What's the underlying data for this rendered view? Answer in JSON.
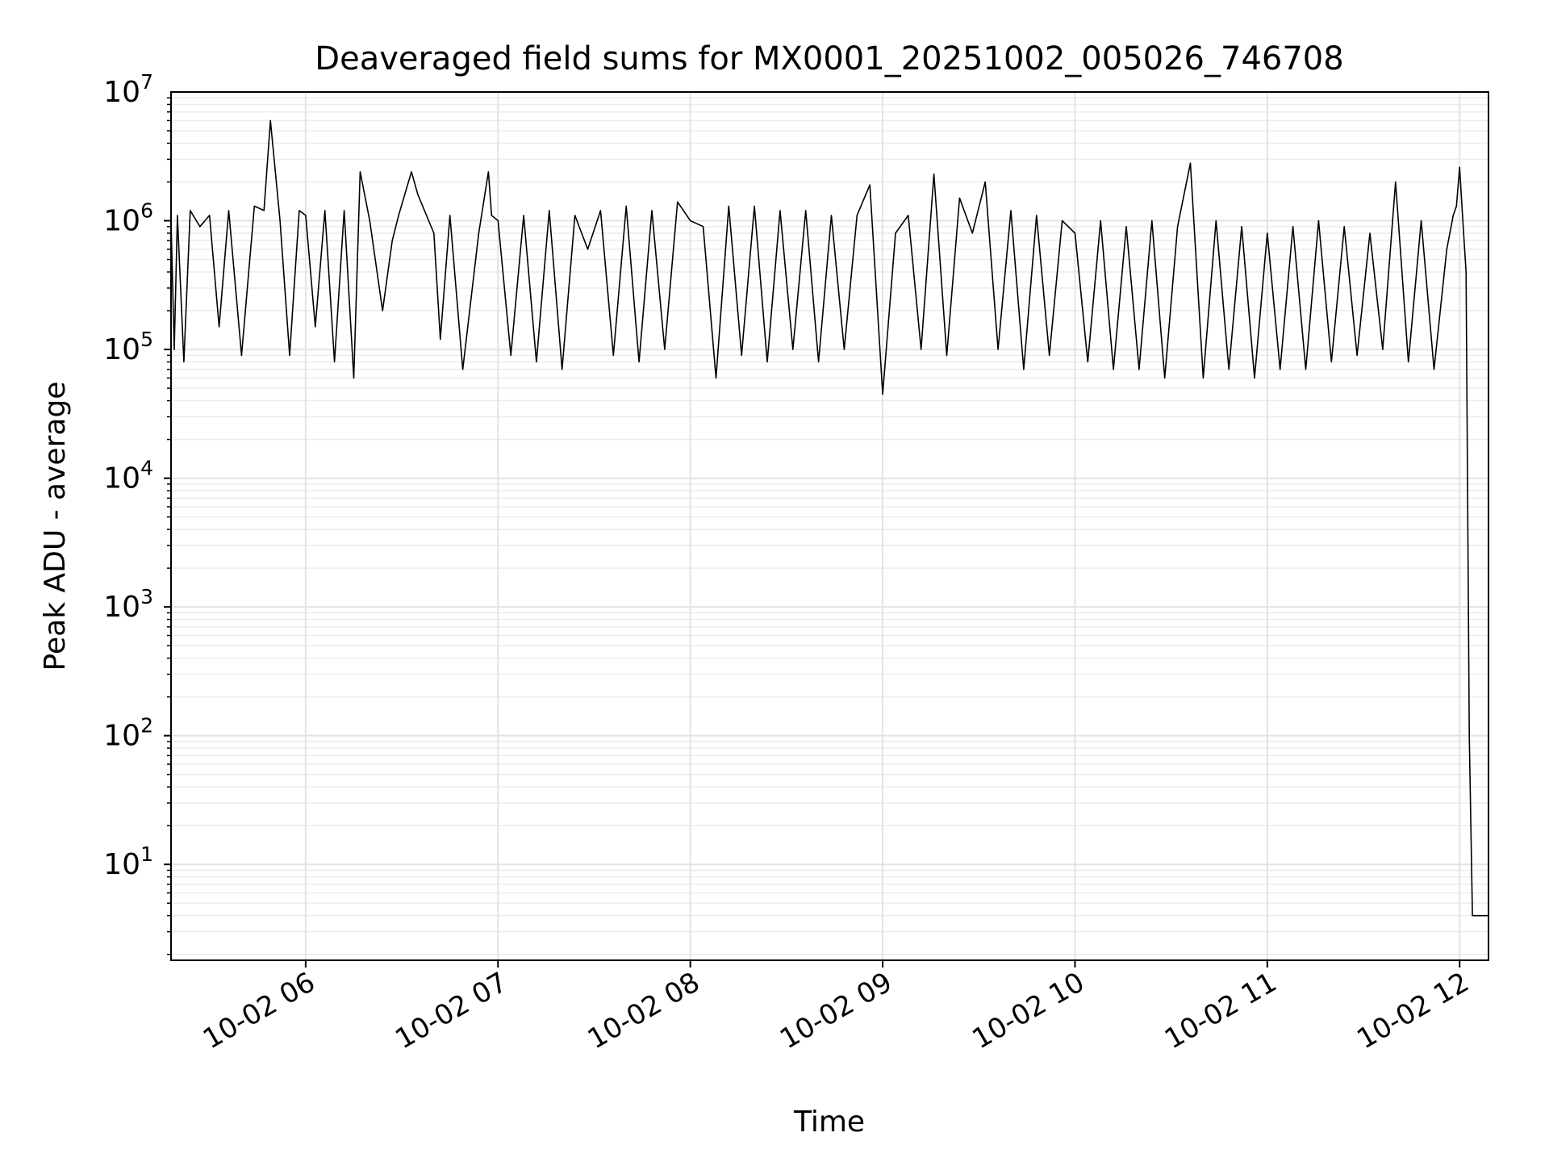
{
  "chart_data": {
    "type": "line",
    "title": "Deaveraged field sums for MX0001_20251002_005026_746708",
    "xlabel": "Time",
    "ylabel": "Peak ADU - average",
    "yscale": "log",
    "ylim": [
      1.8,
      10000000
    ],
    "xlim": [
      "2025-10-02 05:18",
      "2025-10-02 12:09"
    ],
    "grid": true,
    "x_ticks": [
      {
        "time": "2025-10-02 06:00",
        "label": "10-02 06"
      },
      {
        "time": "2025-10-02 07:00",
        "label": "10-02 07"
      },
      {
        "time": "2025-10-02 08:00",
        "label": "10-02 08"
      },
      {
        "time": "2025-10-02 09:00",
        "label": "10-02 09"
      },
      {
        "time": "2025-10-02 10:00",
        "label": "10-02 10"
      },
      {
        "time": "2025-10-02 11:00",
        "label": "10-02 11"
      },
      {
        "time": "2025-10-02 12:00",
        "label": "10-02 12"
      }
    ],
    "y_ticks": [
      {
        "value": 10,
        "base": "10",
        "exp": "1"
      },
      {
        "value": 100,
        "base": "10",
        "exp": "2"
      },
      {
        "value": 1000,
        "base": "10",
        "exp": "3"
      },
      {
        "value": 10000,
        "base": "10",
        "exp": "4"
      },
      {
        "value": 100000,
        "base": "10",
        "exp": "5"
      },
      {
        "value": 1000000,
        "base": "10",
        "exp": "6"
      },
      {
        "value": 10000000,
        "base": "10",
        "exp": "7"
      }
    ],
    "series": [
      {
        "color": "#000000",
        "x": [
          "2025-10-02 05:18",
          "2025-10-02 05:19",
          "2025-10-02 05:20",
          "2025-10-02 05:22",
          "2025-10-02 05:24",
          "2025-10-02 05:27",
          "2025-10-02 05:30",
          "2025-10-02 05:33",
          "2025-10-02 05:36",
          "2025-10-02 05:40",
          "2025-10-02 05:44",
          "2025-10-02 05:47",
          "2025-10-02 05:49",
          "2025-10-02 05:52",
          "2025-10-02 05:55",
          "2025-10-02 05:58",
          "2025-10-02 06:00",
          "2025-10-02 06:03",
          "2025-10-02 06:06",
          "2025-10-02 06:09",
          "2025-10-02 06:12",
          "2025-10-02 06:15",
          "2025-10-02 06:17",
          "2025-10-02 06:20",
          "2025-10-02 06:24",
          "2025-10-02 06:27",
          "2025-10-02 06:29",
          "2025-10-02 06:33",
          "2025-10-02 06:35",
          "2025-10-02 06:40",
          "2025-10-02 06:42",
          "2025-10-02 06:45",
          "2025-10-02 06:49",
          "2025-10-02 06:54",
          "2025-10-02 06:57",
          "2025-10-02 06:58",
          "2025-10-02 07:00",
          "2025-10-02 07:04",
          "2025-10-02 07:08",
          "2025-10-02 07:12",
          "2025-10-02 07:16",
          "2025-10-02 07:20",
          "2025-10-02 07:24",
          "2025-10-02 07:28",
          "2025-10-02 07:32",
          "2025-10-02 07:36",
          "2025-10-02 07:40",
          "2025-10-02 07:44",
          "2025-10-02 07:48",
          "2025-10-02 07:52",
          "2025-10-02 07:56",
          "2025-10-02 08:00",
          "2025-10-02 08:04",
          "2025-10-02 08:08",
          "2025-10-02 08:12",
          "2025-10-02 08:16",
          "2025-10-02 08:20",
          "2025-10-02 08:24",
          "2025-10-02 08:28",
          "2025-10-02 08:32",
          "2025-10-02 08:36",
          "2025-10-02 08:40",
          "2025-10-02 08:44",
          "2025-10-02 08:48",
          "2025-10-02 08:52",
          "2025-10-02 08:56",
          "2025-10-02 09:00",
          "2025-10-02 09:04",
          "2025-10-02 09:08",
          "2025-10-02 09:12",
          "2025-10-02 09:16",
          "2025-10-02 09:20",
          "2025-10-02 09:24",
          "2025-10-02 09:28",
          "2025-10-02 09:32",
          "2025-10-02 09:36",
          "2025-10-02 09:40",
          "2025-10-02 09:44",
          "2025-10-02 09:48",
          "2025-10-02 09:52",
          "2025-10-02 09:56",
          "2025-10-02 10:00",
          "2025-10-02 10:04",
          "2025-10-02 10:08",
          "2025-10-02 10:12",
          "2025-10-02 10:16",
          "2025-10-02 10:20",
          "2025-10-02 10:24",
          "2025-10-02 10:28",
          "2025-10-02 10:32",
          "2025-10-02 10:36",
          "2025-10-02 10:40",
          "2025-10-02 10:44",
          "2025-10-02 10:48",
          "2025-10-02 10:52",
          "2025-10-02 10:56",
          "2025-10-02 11:00",
          "2025-10-02 11:04",
          "2025-10-02 11:08",
          "2025-10-02 11:12",
          "2025-10-02 11:16",
          "2025-10-02 11:20",
          "2025-10-02 11:24",
          "2025-10-02 11:28",
          "2025-10-02 11:32",
          "2025-10-02 11:36",
          "2025-10-02 11:40",
          "2025-10-02 11:44",
          "2025-10-02 11:48",
          "2025-10-02 11:52",
          "2025-10-02 11:56",
          "2025-10-02 11:58",
          "2025-10-02 11:59",
          "2025-10-02 12:00",
          "2025-10-02 12:01",
          "2025-10-02 12:02",
          "2025-10-02 12:03",
          "2025-10-02 12:04",
          "2025-10-02 12:05",
          "2025-10-02 12:06",
          "2025-10-02 12:07",
          "2025-10-02 12:08",
          "2025-10-02 12:09"
        ],
        "y": [
          1000000,
          100000,
          1100000,
          80000,
          1200000,
          900000,
          1100000,
          150000,
          1200000,
          90000,
          1300000,
          1200000,
          6000000,
          1000000,
          90000,
          1200000,
          1100000,
          150000,
          1200000,
          80000,
          1200000,
          60000,
          2400000,
          1000000,
          200000,
          700000,
          1100000,
          2400000,
          1600000,
          800000,
          120000,
          1100000,
          70000,
          800000,
          2400000,
          1100000,
          1000000,
          90000,
          1100000,
          80000,
          1200000,
          70000,
          1100000,
          600000,
          1200000,
          90000,
          1300000,
          80000,
          1200000,
          100000,
          1400000,
          1000000,
          900000,
          60000,
          1300000,
          90000,
          1300000,
          80000,
          1200000,
          100000,
          1200000,
          80000,
          1100000,
          100000,
          1100000,
          1900000,
          45000,
          800000,
          1100000,
          100000,
          2300000,
          90000,
          1500000,
          800000,
          2000000,
          100000,
          1200000,
          70000,
          1100000,
          90000,
          1000000,
          800000,
          80000,
          1000000,
          70000,
          900000,
          70000,
          1000000,
          60000,
          900000,
          2800000,
          60000,
          1000000,
          70000,
          900000,
          60000,
          800000,
          70000,
          900000,
          70000,
          1000000,
          80000,
          900000,
          90000,
          800000,
          100000,
          2000000,
          80000,
          1000000,
          70000,
          600000,
          1100000,
          1300000,
          2600000,
          1000000,
          400000,
          100,
          4,
          4,
          4,
          4,
          4,
          4
        ]
      }
    ]
  }
}
